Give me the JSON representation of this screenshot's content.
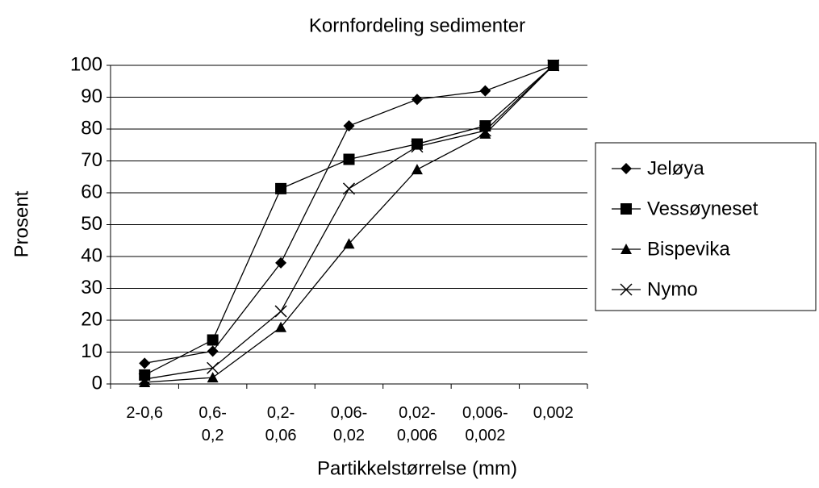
{
  "chart_data": {
    "type": "line",
    "title": "Kornfordeling sedimenter",
    "x_label": "Partikkelstørrelse (mm)",
    "y_label": "Prosent",
    "categories": [
      "2-0,6",
      "0,6-0,2",
      "0,2-0,06",
      "0,06-0,02",
      "0,02-0,006",
      "0,006-0,002",
      "0,002"
    ],
    "series": [
      {
        "name": "Jeløya",
        "color": "#000000",
        "marker": "diamond",
        "values": [
          6.5,
          10.3,
          38,
          81,
          89.3,
          92,
          100
        ]
      },
      {
        "name": "Vessøyneset",
        "color": "#000000",
        "marker": "square",
        "values": [
          2.8,
          13.8,
          61.3,
          70.5,
          75.3,
          81,
          100
        ]
      },
      {
        "name": "Bispevika",
        "color": "#000000",
        "marker": "triangle",
        "values": [
          0.5,
          2,
          17.8,
          44,
          67.3,
          78.5,
          100
        ]
      },
      {
        "name": "Nymo",
        "color": "#000000",
        "marker": "x",
        "values": [
          1.5,
          5,
          22.8,
          61.3,
          74.5,
          79.5,
          100
        ]
      }
    ],
    "ylim": [
      0,
      100
    ],
    "yticks": [
      0,
      10,
      20,
      30,
      40,
      50,
      60,
      70,
      80,
      90,
      100
    ],
    "grid": true,
    "legend": "right"
  }
}
